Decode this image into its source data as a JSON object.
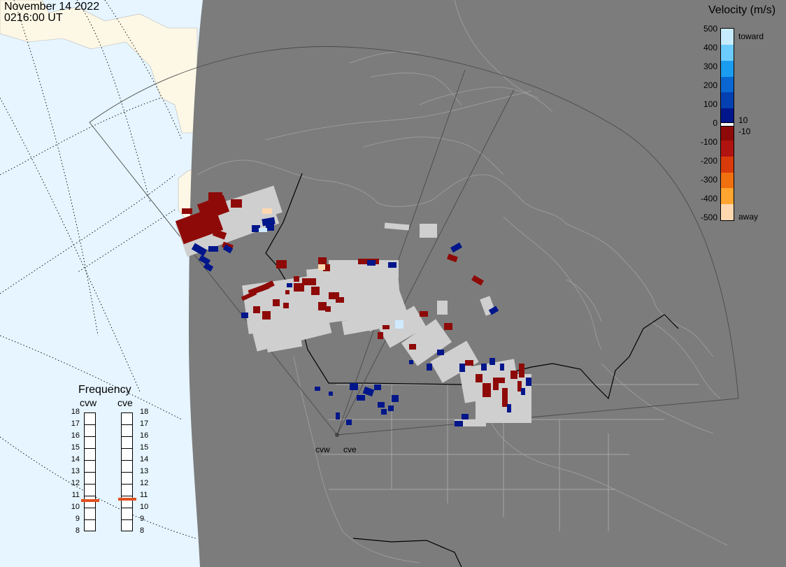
{
  "header": {
    "date": "November 14 2022",
    "time": "0216:00 UT"
  },
  "colorbar": {
    "title": "Velocity (m/s)",
    "ticks": [
      "500",
      "400",
      "300",
      "200",
      "100",
      "0",
      "-100",
      "-200",
      "-300",
      "-400",
      "-500"
    ],
    "threshold_pos": "10",
    "threshold_neg": "-10",
    "toward_label": "toward",
    "away_label": "away",
    "colors": [
      "#c8ecff",
      "#6ccbff",
      "#1a9cf0",
      "#0a66d0",
      "#0440b0",
      "#00168a",
      "#8e0a08",
      "#b01410",
      "#d83a0a",
      "#f07010",
      "#ffa530",
      "#ffd8b0"
    ]
  },
  "frequency": {
    "title": "Frequency",
    "radars": [
      "cvw",
      "cve"
    ],
    "scale": [
      "18",
      "17",
      "16",
      "15",
      "14",
      "13",
      "12",
      "11",
      "10",
      "9",
      "8"
    ],
    "cvw_mhz": 10.6,
    "cve_mhz": 10.7,
    "marker_color": "#e05020"
  },
  "sites": [
    "cvw",
    "cve"
  ],
  "map_colors": {
    "ocean_day": "#e6f5ff",
    "land_day": "#fdf8e6",
    "night": "#7c7c7c",
    "ground_scatter": "#cfcfcf"
  }
}
